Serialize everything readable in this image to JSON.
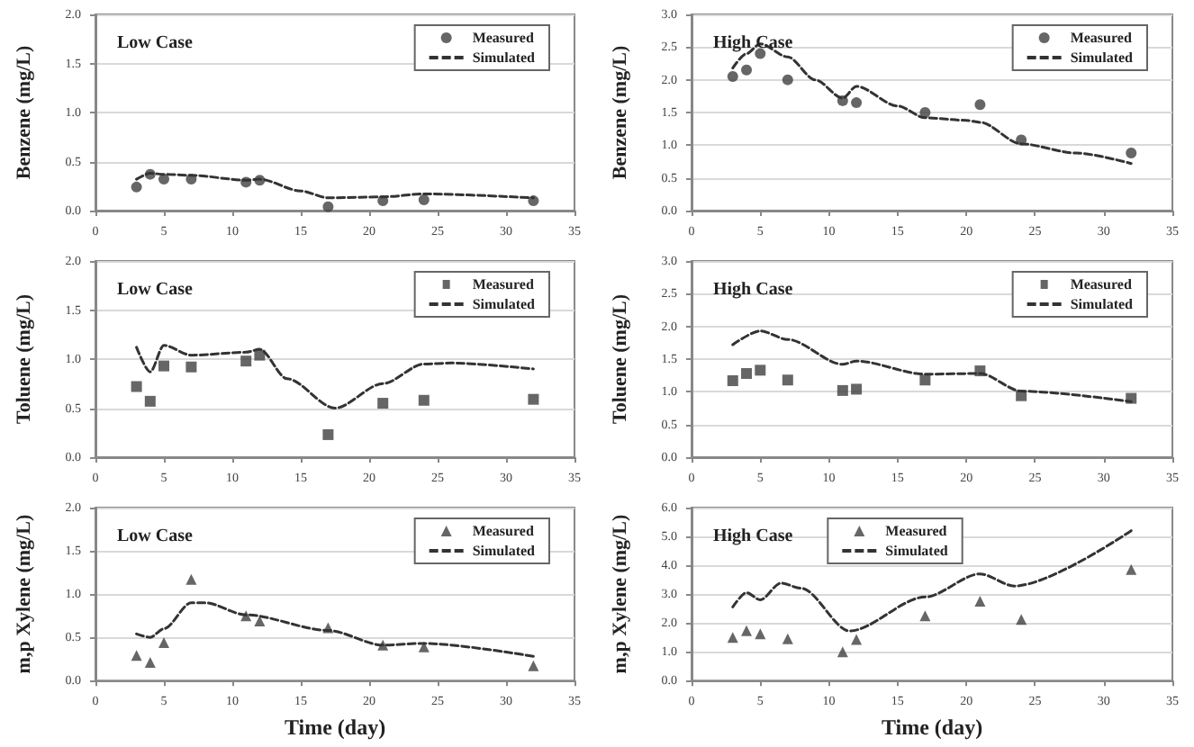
{
  "chart_data": [
    {
      "type": "line",
      "title": "Low Case",
      "ylabel": "Benzene (mg/L)",
      "xlim": [
        0,
        35
      ],
      "xticks": [
        0,
        5,
        10,
        15,
        20,
        25,
        30,
        35
      ],
      "ylim": [
        0,
        2
      ],
      "yticks": [
        {
          "value": 0,
          "label": "0.0"
        },
        {
          "value": 0.5,
          "label": "0.5"
        },
        {
          "value": 1,
          "label": "1.0"
        },
        {
          "value": 1.5,
          "label": "1.5"
        },
        {
          "value": 2,
          "label": "2.0"
        }
      ],
      "grid": "y",
      "legend": "top right",
      "line_style": "dashed",
      "series": [
        {
          "name": "Measured",
          "type": "scatter",
          "marker": "circle",
          "color": "#404040",
          "x": [
            3,
            4,
            5,
            7,
            11,
            12,
            17,
            21,
            24,
            32
          ],
          "values": [
            0.24,
            0.37,
            0.32,
            0.32,
            0.29,
            0.31,
            0.04,
            0.1,
            0.11,
            0.1
          ]
        },
        {
          "name": "Simulated",
          "type": "line",
          "color": "#333333",
          "x": [
            3,
            4,
            5,
            7,
            11,
            12,
            15,
            17,
            21,
            24,
            32
          ],
          "values": [
            0.32,
            0.38,
            0.37,
            0.36,
            0.31,
            0.32,
            0.2,
            0.13,
            0.14,
            0.17,
            0.13
          ]
        }
      ]
    },
    {
      "type": "line",
      "title": "High Case",
      "ylabel": "Benzene (mg/L)",
      "xlim": [
        0,
        35
      ],
      "xticks": [
        0,
        5,
        10,
        15,
        20,
        25,
        30,
        35
      ],
      "ylim": [
        0,
        3
      ],
      "yticks": [
        {
          "value": 0,
          "label": "0.0"
        },
        {
          "value": 0.5,
          "label": "0.5"
        },
        {
          "value": 1,
          "label": "1.0"
        },
        {
          "value": 1.5,
          "label": "1.5"
        },
        {
          "value": 2,
          "label": "2.0"
        },
        {
          "value": 2.5,
          "label": "2.5"
        },
        {
          "value": 3,
          "label": "3.0"
        }
      ],
      "grid": "y",
      "legend": "top right",
      "line_style": "dashed",
      "series": [
        {
          "name": "Measured",
          "type": "scatter",
          "marker": "circle",
          "color": "#404040",
          "x": [
            3,
            4,
            5,
            7,
            11,
            12,
            17,
            21,
            24,
            32
          ],
          "values": [
            2.05,
            2.15,
            2.4,
            2.0,
            1.68,
            1.65,
            1.5,
            1.62,
            1.08,
            0.88
          ]
        },
        {
          "name": "Simulated",
          "type": "line",
          "color": "#333333",
          "x": [
            3,
            4,
            5,
            7,
            9,
            11,
            12,
            15,
            17,
            20,
            21,
            24,
            28,
            32
          ],
          "values": [
            2.18,
            2.4,
            2.55,
            2.35,
            2.0,
            1.72,
            1.9,
            1.6,
            1.42,
            1.38,
            1.35,
            1.02,
            0.88,
            0.72
          ]
        }
      ]
    },
    {
      "type": "line",
      "title": "Low Case",
      "ylabel": "Toluene (mg/L)",
      "xlim": [
        0,
        35
      ],
      "xticks": [
        0,
        5,
        10,
        15,
        20,
        25,
        30,
        35
      ],
      "ylim": [
        0,
        2
      ],
      "yticks": [
        {
          "value": 0,
          "label": "0.0"
        },
        {
          "value": 0.5,
          "label": "0.5"
        },
        {
          "value": 1,
          "label": "1.0"
        },
        {
          "value": 1.5,
          "label": "1.5"
        },
        {
          "value": 2,
          "label": "2.0"
        }
      ],
      "grid": "y",
      "legend": "top right",
      "line_style": "dashed",
      "series": [
        {
          "name": "Measured",
          "type": "scatter",
          "marker": "square",
          "color": "#404040",
          "x": [
            3,
            4,
            5,
            7,
            11,
            12,
            17,
            21,
            24,
            32
          ],
          "values": [
            0.72,
            0.57,
            0.93,
            0.92,
            0.98,
            1.04,
            0.23,
            0.55,
            0.58,
            0.59
          ]
        },
        {
          "name": "Simulated",
          "type": "line",
          "color": "#333333",
          "x": [
            3,
            4,
            5,
            7,
            11,
            12,
            14,
            17.5,
            21,
            24,
            26,
            32
          ],
          "values": [
            1.12,
            0.87,
            1.14,
            1.04,
            1.07,
            1.1,
            0.8,
            0.5,
            0.75,
            0.95,
            0.96,
            0.9
          ]
        }
      ]
    },
    {
      "type": "line",
      "title": "High Case",
      "ylabel": "Toluene (mg/L)",
      "xlim": [
        0,
        35
      ],
      "xticks": [
        0,
        5,
        10,
        15,
        20,
        25,
        30,
        35
      ],
      "ylim": [
        0,
        3
      ],
      "yticks": [
        {
          "value": 0,
          "label": "0.0"
        },
        {
          "value": 0.5,
          "label": "0.5"
        },
        {
          "value": 1,
          "label": "1.0"
        },
        {
          "value": 1.5,
          "label": "1.5"
        },
        {
          "value": 2,
          "label": "2.0"
        },
        {
          "value": 2.5,
          "label": "2.5"
        },
        {
          "value": 3,
          "label": "3.0"
        }
      ],
      "grid": "y",
      "legend": "top right",
      "line_style": "dashed",
      "series": [
        {
          "name": "Measured",
          "type": "scatter",
          "marker": "square",
          "color": "#404040",
          "x": [
            3,
            4,
            5,
            7,
            11,
            12,
            17,
            21,
            24,
            32
          ],
          "values": [
            1.17,
            1.28,
            1.33,
            1.18,
            1.02,
            1.04,
            1.18,
            1.32,
            0.94,
            0.9
          ]
        },
        {
          "name": "Simulated",
          "type": "line",
          "color": "#333333",
          "x": [
            3,
            5,
            7,
            11,
            12,
            17,
            21,
            24,
            32
          ],
          "values": [
            1.72,
            1.93,
            1.8,
            1.42,
            1.47,
            1.27,
            1.28,
            1.01,
            0.85
          ]
        }
      ]
    },
    {
      "type": "line",
      "title": "Low Case",
      "xlabel": "Time (day)",
      "ylabel": "m,p Xylene (mg/L)",
      "xlim": [
        0,
        35
      ],
      "xticks": [
        0,
        5,
        10,
        15,
        20,
        25,
        30,
        35
      ],
      "ylim": [
        0,
        2
      ],
      "yticks": [
        {
          "value": 0,
          "label": "0.0"
        },
        {
          "value": 0.5,
          "label": "0.5"
        },
        {
          "value": 1,
          "label": "1.0"
        },
        {
          "value": 1.5,
          "label": "1.5"
        },
        {
          "value": 2,
          "label": "2.0"
        }
      ],
      "grid": "y",
      "legend": "top right",
      "line_style": "dashed",
      "series": [
        {
          "name": "Measured",
          "type": "scatter",
          "marker": "triangle",
          "color": "#404040",
          "x": [
            3,
            4,
            5,
            7,
            11,
            12,
            17,
            21,
            24,
            32
          ],
          "values": [
            0.29,
            0.21,
            0.44,
            1.17,
            0.75,
            0.69,
            0.61,
            0.41,
            0.39,
            0.17
          ]
        },
        {
          "name": "Simulated",
          "type": "line",
          "color": "#333333",
          "x": [
            3,
            4,
            5,
            7,
            8,
            11,
            17,
            21,
            24,
            32
          ],
          "values": [
            0.54,
            0.5,
            0.6,
            0.9,
            0.9,
            0.76,
            0.58,
            0.41,
            0.43,
            0.28
          ]
        }
      ]
    },
    {
      "type": "line",
      "title": "High Case",
      "xlabel": "Time (day)",
      "ylabel": "m,p Xylene (mg/L)",
      "xlim": [
        0,
        35
      ],
      "xticks": [
        0,
        5,
        10,
        15,
        20,
        25,
        30,
        35
      ],
      "ylim": [
        0,
        6
      ],
      "yticks": [
        {
          "value": 0,
          "label": "0.0"
        },
        {
          "value": 1,
          "label": "1.0"
        },
        {
          "value": 2,
          "label": "2.0"
        },
        {
          "value": 3,
          "label": "3.0"
        },
        {
          "value": 4,
          "label": "4.0"
        },
        {
          "value": 5,
          "label": "5.0"
        },
        {
          "value": 6,
          "label": "6.0"
        }
      ],
      "grid": "y",
      "legend": "top",
      "line_style": "dashed",
      "series": [
        {
          "name": "Measured",
          "type": "scatter",
          "marker": "triangle",
          "color": "#404040",
          "x": [
            3,
            4,
            5,
            7,
            11,
            12,
            17,
            21,
            24,
            32
          ],
          "values": [
            1.5,
            1.73,
            1.62,
            1.45,
            1.0,
            1.43,
            2.25,
            2.75,
            2.12,
            3.85
          ]
        },
        {
          "name": "Simulated",
          "type": "line",
          "color": "#333333",
          "x": [
            3,
            4,
            5,
            6.5,
            8,
            11.5,
            17,
            21,
            23.5,
            32
          ],
          "values": [
            2.55,
            3.05,
            2.8,
            3.38,
            3.2,
            1.72,
            2.9,
            3.7,
            3.28,
            5.2
          ]
        }
      ]
    }
  ]
}
